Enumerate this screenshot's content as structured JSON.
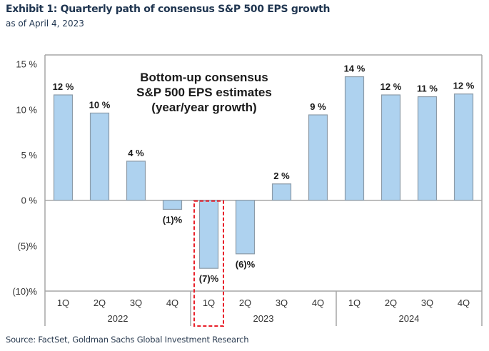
{
  "header": {
    "title": "Exhibit 1: Quarterly path of consensus S&P 500 EPS growth",
    "subtitle": "as of April 4, 2023"
  },
  "footer": {
    "source": "Source: FactSet, Goldman Sachs Global Investment Research"
  },
  "colors": {
    "bar_fill": "#aed2ef",
    "bar_stroke": "#8c9ba8",
    "axis": "#a6a6a6",
    "highlight_box": "#e8202a",
    "text": "#1a1a1a"
  },
  "chart_data": {
    "type": "bar",
    "title": "Bottom-up consensus S&P 500 EPS estimates (year/year growth)",
    "annotation_lines": [
      "Bottom-up consensus",
      "S&P 500 EPS estimates",
      "(year/year growth)"
    ],
    "xlabel": "",
    "ylabel": "",
    "ylim": [
      -10,
      16
    ],
    "yticks": [
      15,
      10,
      5,
      0,
      -5,
      -10
    ],
    "ytick_labels": [
      "15 %",
      "10 %",
      "5 %",
      "0 %",
      "(5)%",
      "(10)%"
    ],
    "grid": false,
    "legend": "none",
    "categories": [
      "1Q",
      "2Q",
      "3Q",
      "4Q",
      "1Q",
      "2Q",
      "3Q",
      "4Q",
      "1Q",
      "2Q",
      "3Q",
      "4Q"
    ],
    "groups": [
      {
        "label": "2022",
        "count": 4
      },
      {
        "label": "2023",
        "count": 4
      },
      {
        "label": "2024",
        "count": 4
      }
    ],
    "values": [
      11.6,
      9.6,
      4.3,
      -1.0,
      -7.5,
      -5.9,
      1.8,
      9.4,
      13.6,
      11.6,
      11.4,
      11.7
    ],
    "data_labels": [
      "12 %",
      "10 %",
      "4 %",
      "(1)%",
      "(7)%",
      "(6)%",
      "2 %",
      "9 %",
      "14 %",
      "12 %",
      "11 %",
      "12 %"
    ],
    "highlighted_index": 4
  }
}
